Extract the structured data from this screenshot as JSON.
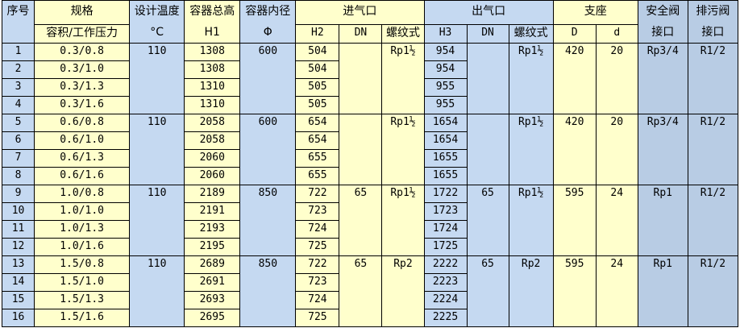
{
  "header": {
    "seq": "序号",
    "spec": "规格",
    "spec_sub": "容积/工作压力",
    "temp": "设计温度",
    "temp_unit": "°C",
    "height": "容器总高",
    "height_sym": "H1",
    "diam": "容器内径",
    "diam_sym": "Φ",
    "inlet": "进气口",
    "outlet": "出气口",
    "support": "支座",
    "safety": "安全阀",
    "drain": "排污阀",
    "port": "接口",
    "h2": "H2",
    "dn": "DN",
    "thread": "螺纹式",
    "h3": "H3",
    "D": "D",
    "d": "d"
  },
  "groups": [
    {
      "temp": "110",
      "diam": "600",
      "in_dn": "",
      "in_thread": "Rp1½",
      "out_dn": "",
      "out_thread": "Rp1½",
      "D": "420",
      "d": "20",
      "safety": "Rp3/4",
      "drain": "R1/2",
      "rows": [
        {
          "no": "1",
          "spec": "0.3/0.8",
          "h1": "1308",
          "h2": "504",
          "h3": "954"
        },
        {
          "no": "2",
          "spec": "0.3/1.0",
          "h1": "1308",
          "h2": "504",
          "h3": "954"
        },
        {
          "no": "3",
          "spec": "0.3/1.3",
          "h1": "1310",
          "h2": "505",
          "h3": "955"
        },
        {
          "no": "4",
          "spec": "0.3/1.6",
          "h1": "1310",
          "h2": "505",
          "h3": "955"
        }
      ]
    },
    {
      "temp": "110",
      "diam": "600",
      "in_dn": "",
      "in_thread": "Rp1½",
      "out_dn": "",
      "out_thread": "Rp1½",
      "D": "420",
      "d": "20",
      "safety": "Rp3/4",
      "drain": "R1/2",
      "rows": [
        {
          "no": "5",
          "spec": "0.6/0.8",
          "h1": "2058",
          "h2": "654",
          "h3": "1654"
        },
        {
          "no": "6",
          "spec": "0.6/1.0",
          "h1": "2058",
          "h2": "654",
          "h3": "1654"
        },
        {
          "no": "7",
          "spec": "0.6/1.3",
          "h1": "2060",
          "h2": "655",
          "h3": "1655"
        },
        {
          "no": "8",
          "spec": "0.6/1.6",
          "h1": "2060",
          "h2": "655",
          "h3": "1655"
        }
      ]
    },
    {
      "temp": "110",
      "diam": "850",
      "in_dn": "65",
      "in_thread": "Rp1½",
      "out_dn": "65",
      "out_thread": "Rp1½",
      "D": "595",
      "d": "24",
      "safety": "Rp1",
      "drain": "R1/2",
      "rows": [
        {
          "no": "9",
          "spec": "1.0/0.8",
          "h1": "2189",
          "h2": "722",
          "h3": "1722"
        },
        {
          "no": "10",
          "spec": "1.0/1.0",
          "h1": "2191",
          "h2": "723",
          "h3": "1723"
        },
        {
          "no": "11",
          "spec": "1.0/1.3",
          "h1": "2193",
          "h2": "724",
          "h3": "1724"
        },
        {
          "no": "12",
          "spec": "1.0/1.6",
          "h1": "2195",
          "h2": "725",
          "h3": "1725"
        }
      ]
    },
    {
      "temp": "110",
      "diam": "850",
      "in_dn": "65",
      "in_thread": "Rp2",
      "out_dn": "65",
      "out_thread": "Rp2",
      "D": "595",
      "d": "24",
      "safety": "Rp1",
      "drain": "R1/2",
      "rows": [
        {
          "no": "13",
          "spec": "1.5/0.8",
          "h1": "2689",
          "h2": "722",
          "h3": "2222"
        },
        {
          "no": "14",
          "spec": "1.5/1.0",
          "h1": "2691",
          "h2": "723",
          "h3": "2223"
        },
        {
          "no": "15",
          "spec": "1.5/1.3",
          "h1": "2693",
          "h2": "724",
          "h3": "2224"
        },
        {
          "no": "16",
          "spec": "1.5/1.6",
          "h1": "2695",
          "h2": "725",
          "h3": "2225"
        }
      ]
    }
  ]
}
